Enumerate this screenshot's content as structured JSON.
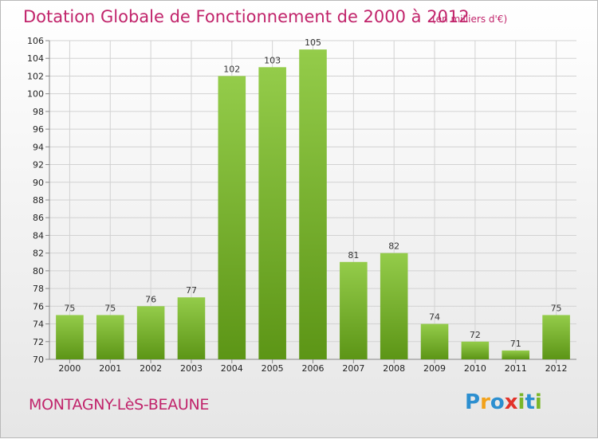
{
  "title": "Dotation Globale de Fonctionnement de 2000 à 2012",
  "subtitle": "(en milliers d'€)",
  "commune": "MONTAGNY-LèS-BEAUNE",
  "logo": {
    "letters": [
      "P",
      "r",
      "o",
      "x",
      "i",
      "t",
      "i"
    ],
    "colors": [
      "#2c8fd0",
      "#f2a21b",
      "#2c8fd0",
      "#e2332a",
      "#7ab628",
      "#2c8fd0",
      "#7ab628"
    ]
  },
  "colors": {
    "title": "#c1246b",
    "bar_top": "#94cc4a",
    "bar_bottom": "#5c9516"
  },
  "chart_data": {
    "type": "bar",
    "categories": [
      "2000",
      "2001",
      "2002",
      "2003",
      "2004",
      "2005",
      "2006",
      "2007",
      "2008",
      "2009",
      "2010",
      "2011",
      "2012"
    ],
    "values": [
      75,
      75,
      76,
      77,
      102,
      103,
      105,
      81,
      82,
      74,
      72,
      71,
      75
    ],
    "ylim": [
      70,
      106
    ],
    "yticks": [
      70,
      72,
      74,
      76,
      78,
      80,
      82,
      84,
      86,
      88,
      90,
      92,
      94,
      96,
      98,
      100,
      102,
      104,
      106
    ],
    "grid": true,
    "data_labels": true
  }
}
